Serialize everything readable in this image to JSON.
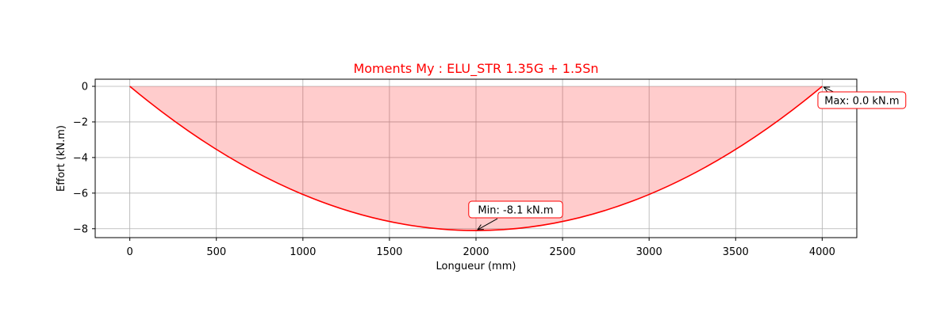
{
  "chart_data": {
    "type": "area",
    "title": "Moments My : ELU_STR 1.35G + 1.5Sn",
    "xlabel": "Longueur (mm)",
    "ylabel": "Effort (kN.m)",
    "xlim": [
      -200,
      4200
    ],
    "ylim": [
      -8.5,
      0.4
    ],
    "x_ticks": [
      0,
      500,
      1000,
      1500,
      2000,
      2500,
      3000,
      3500,
      4000
    ],
    "y_ticks": [
      0,
      -2,
      -4,
      -6,
      -8
    ],
    "y_tick_labels": [
      "0",
      "−2",
      "−4",
      "−6",
      "−8"
    ],
    "grid": true,
    "series": [
      {
        "color": "#ff0000",
        "fill_color": "#ff0000",
        "fill_opacity": 0.2,
        "x": [
          0,
          250,
          500,
          750,
          1000,
          1250,
          1500,
          1750,
          2000,
          2250,
          2500,
          2750,
          3000,
          3250,
          3500,
          3750,
          4000
        ],
        "y": [
          0,
          -1.9,
          -3.54,
          -4.94,
          -6.08,
          -6.96,
          -7.59,
          -7.97,
          -8.1,
          -7.97,
          -7.59,
          -6.96,
          -6.08,
          -4.94,
          -3.54,
          -1.9,
          0
        ]
      }
    ],
    "annotations": [
      {
        "text": "Min: -8.1 kN.m",
        "x": 2000,
        "y": -8.1
      },
      {
        "text": "Max: 0.0 kN.m",
        "x": 4000,
        "y": 0
      }
    ],
    "title_color": "#ff0000",
    "annotation_border_color": "#ff0000"
  }
}
